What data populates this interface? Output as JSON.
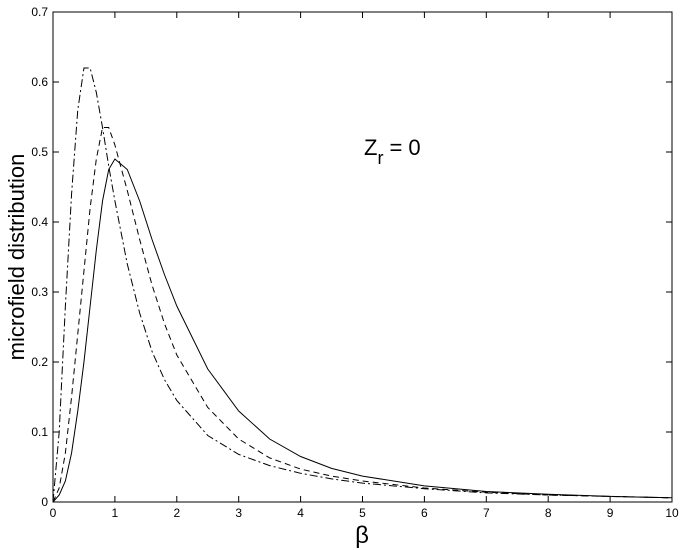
{
  "chart_data": {
    "type": "line",
    "xlabel": "β",
    "ylabel": "microfield distribution",
    "annotation": [
      "Z",
      "r",
      "= 0"
    ],
    "x": [
      0,
      0.1,
      0.2,
      0.3,
      0.4,
      0.5,
      0.6,
      0.7,
      0.8,
      0.9,
      1.0,
      1.2,
      1.4,
      1.6,
      1.8,
      2,
      2.5,
      3,
      3.5,
      4,
      4.5,
      5,
      6,
      7,
      8,
      9,
      10
    ],
    "series": [
      {
        "color": "#000000",
        "dash": "solid",
        "values": [
          0,
          0.01,
          0.03,
          0.07,
          0.13,
          0.2,
          0.28,
          0.36,
          0.43,
          0.475,
          0.49,
          0.475,
          0.43,
          0.375,
          0.325,
          0.28,
          0.19,
          0.13,
          0.09,
          0.065,
          0.048,
          0.037,
          0.023,
          0.015,
          0.011,
          0.008,
          0.006
        ]
      },
      {
        "color": "#000000",
        "dash": "dashed",
        "values": [
          0,
          0.02,
          0.07,
          0.15,
          0.24,
          0.33,
          0.42,
          0.49,
          0.535,
          0.535,
          0.51,
          0.445,
          0.375,
          0.31,
          0.255,
          0.21,
          0.135,
          0.09,
          0.063,
          0.047,
          0.037,
          0.03,
          0.02,
          0.014,
          0.01,
          0.008,
          0.006
        ]
      },
      {
        "color": "#000000",
        "dash": "dashdot",
        "values": [
          0,
          0.1,
          0.28,
          0.44,
          0.56,
          0.62,
          0.62,
          0.585,
          0.535,
          0.48,
          0.43,
          0.34,
          0.27,
          0.215,
          0.175,
          0.145,
          0.095,
          0.068,
          0.052,
          0.041,
          0.033,
          0.027,
          0.019,
          0.013,
          0.01,
          0.008,
          0.006
        ]
      }
    ],
    "xlim": [
      0,
      10
    ],
    "xticks": [
      0,
      1,
      2,
      3,
      4,
      5,
      6,
      7,
      8,
      9,
      10
    ],
    "ylim": [
      0,
      0.7
    ],
    "yticks": [
      0,
      0.1,
      0.2,
      0.3,
      0.4,
      0.5,
      0.6,
      0.7
    ],
    "grid": false
  }
}
